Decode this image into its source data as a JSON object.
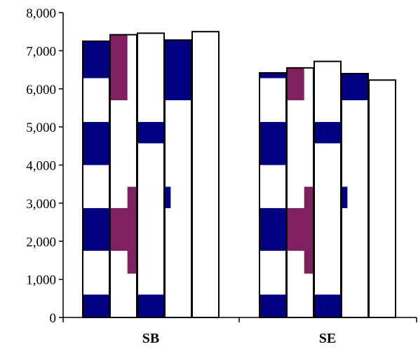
{
  "chart_data": {
    "type": "bar",
    "categories": [
      "SB",
      "SE"
    ],
    "series": [
      {
        "values": [
          7250,
          6420
        ],
        "pattern": "band-blue"
      },
      {
        "values": [
          7420,
          6550
        ],
        "pattern": "plum-cross"
      },
      {
        "values": [
          7460,
          6720
        ],
        "pattern": "blue-cross"
      },
      {
        "values": [
          7280,
          6400
        ],
        "pattern": "blue-cross-right"
      },
      {
        "values": [
          7500,
          6230
        ],
        "pattern": "plain"
      }
    ],
    "ylim": [
      0,
      8000
    ],
    "yticks": [
      {
        "value": 0,
        "label": "0"
      },
      {
        "value": 1000,
        "label": "1,000"
      },
      {
        "value": 2000,
        "label": "2,000"
      },
      {
        "value": 3000,
        "label": "3,000"
      },
      {
        "value": 4000,
        "label": "4,000"
      },
      {
        "value": 5000,
        "label": "5,000"
      },
      {
        "value": 6000,
        "label": "6,000"
      },
      {
        "value": 7000,
        "label": "7,000"
      },
      {
        "value": 8000,
        "label": "8,000"
      }
    ],
    "grid": false,
    "legend": "none",
    "colors": {
      "navy": "#000080",
      "plum": "#802060",
      "white": "#ffffff",
      "border": "#000000"
    }
  }
}
